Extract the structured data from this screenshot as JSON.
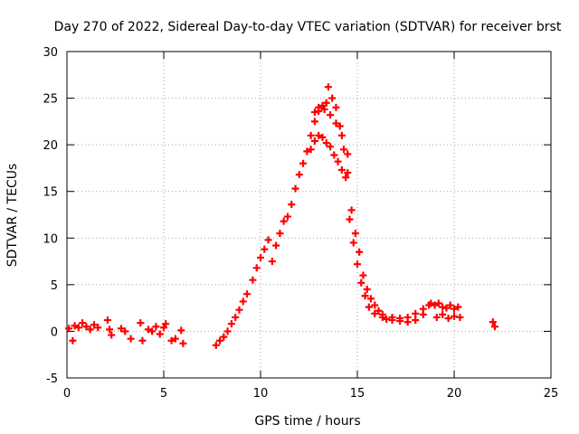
{
  "chart_data": {
    "type": "scatter",
    "title": "Day 270 of 2022, Sidereal Day-to-day VTEC variation (SDTVAR) for receiver brst",
    "xlabel": "GPS time / hours",
    "ylabel": "SDTVAR / TECUs",
    "xlim": [
      0,
      25
    ],
    "ylim": [
      -5,
      30
    ],
    "xticks": [
      0,
      5,
      10,
      15,
      20,
      25
    ],
    "yticks": [
      -5,
      0,
      5,
      10,
      15,
      20,
      25,
      30
    ],
    "grid": true,
    "marker": "plus",
    "series": [
      {
        "name": "SDTVAR",
        "color": "#ff0000",
        "points": [
          [
            0.1,
            0.3
          ],
          [
            0.3,
            -1.0
          ],
          [
            0.4,
            0.6
          ],
          [
            0.6,
            0.4
          ],
          [
            0.8,
            0.9
          ],
          [
            1.0,
            0.5
          ],
          [
            1.2,
            0.2
          ],
          [
            1.4,
            0.7
          ],
          [
            1.6,
            0.4
          ],
          [
            2.1,
            1.2
          ],
          [
            2.2,
            0.2
          ],
          [
            2.3,
            -0.4
          ],
          [
            2.8,
            0.3
          ],
          [
            3.0,
            0.0
          ],
          [
            3.3,
            -0.8
          ],
          [
            3.8,
            0.9
          ],
          [
            3.9,
            -1.0
          ],
          [
            4.2,
            0.2
          ],
          [
            4.4,
            0.0
          ],
          [
            4.6,
            0.5
          ],
          [
            4.8,
            -0.3
          ],
          [
            5.0,
            0.4
          ],
          [
            5.1,
            0.8
          ],
          [
            5.4,
            -1.0
          ],
          [
            5.6,
            -0.8
          ],
          [
            5.9,
            0.1
          ],
          [
            6.0,
            -1.3
          ],
          [
            7.7,
            -1.5
          ],
          [
            7.9,
            -1.0
          ],
          [
            8.1,
            -0.6
          ],
          [
            8.3,
            0.0
          ],
          [
            8.5,
            0.8
          ],
          [
            8.7,
            1.5
          ],
          [
            8.9,
            2.3
          ],
          [
            9.1,
            3.2
          ],
          [
            9.3,
            4.0
          ],
          [
            9.6,
            5.5
          ],
          [
            9.8,
            6.8
          ],
          [
            10.0,
            7.9
          ],
          [
            10.2,
            8.8
          ],
          [
            10.4,
            9.8
          ],
          [
            10.6,
            7.5
          ],
          [
            10.8,
            9.2
          ],
          [
            11.0,
            10.5
          ],
          [
            11.2,
            11.8
          ],
          [
            11.4,
            12.3
          ],
          [
            11.6,
            13.6
          ],
          [
            11.8,
            15.3
          ],
          [
            12.0,
            16.8
          ],
          [
            12.2,
            18.0
          ],
          [
            12.4,
            19.3
          ],
          [
            12.6,
            21.0
          ],
          [
            12.8,
            22.5
          ],
          [
            13.0,
            23.6
          ],
          [
            13.2,
            24.2
          ],
          [
            13.4,
            24.5
          ],
          [
            13.5,
            26.2
          ],
          [
            13.7,
            25.0
          ],
          [
            13.9,
            24.0
          ],
          [
            14.1,
            22.0
          ],
          [
            14.3,
            19.5
          ],
          [
            14.5,
            17.0
          ],
          [
            14.7,
            13.0
          ],
          [
            14.9,
            10.5
          ],
          [
            15.1,
            8.5
          ],
          [
            15.3,
            6.0
          ],
          [
            15.5,
            4.5
          ],
          [
            15.7,
            3.5
          ],
          [
            15.9,
            2.8
          ],
          [
            16.1,
            2.2
          ],
          [
            16.3,
            1.8
          ],
          [
            16.5,
            1.3
          ],
          [
            16.8,
            1.2
          ],
          [
            17.2,
            1.1
          ],
          [
            17.6,
            1.0
          ],
          [
            18.0,
            1.2
          ],
          [
            18.4,
            1.8
          ],
          [
            18.8,
            3.0
          ],
          [
            12.6,
            19.5
          ],
          [
            12.8,
            20.4
          ],
          [
            13.0,
            21.0
          ],
          [
            13.2,
            20.8
          ],
          [
            13.4,
            20.2
          ],
          [
            13.6,
            19.8
          ],
          [
            13.8,
            18.9
          ],
          [
            14.0,
            18.2
          ],
          [
            14.2,
            17.3
          ],
          [
            14.4,
            16.5
          ],
          [
            14.6,
            12.0
          ],
          [
            14.8,
            9.5
          ],
          [
            15.0,
            7.2
          ],
          [
            15.2,
            5.2
          ],
          [
            15.4,
            3.8
          ],
          [
            15.6,
            2.6
          ],
          [
            15.9,
            1.9
          ],
          [
            16.3,
            1.5
          ],
          [
            16.8,
            1.5
          ],
          [
            17.2,
            1.4
          ],
          [
            17.6,
            1.5
          ],
          [
            18.0,
            1.9
          ],
          [
            18.4,
            2.4
          ],
          [
            18.7,
            2.8
          ],
          [
            12.8,
            23.5
          ],
          [
            13.0,
            24.0
          ],
          [
            13.3,
            23.8
          ],
          [
            13.6,
            23.2
          ],
          [
            13.9,
            22.3
          ],
          [
            14.2,
            21.0
          ],
          [
            14.5,
            19.0
          ],
          [
            19.0,
            2.8
          ],
          [
            19.2,
            3.0
          ],
          [
            19.4,
            2.6
          ],
          [
            19.6,
            2.5
          ],
          [
            19.8,
            2.8
          ],
          [
            20.0,
            2.4
          ],
          [
            20.2,
            2.6
          ],
          [
            19.1,
            1.5
          ],
          [
            19.4,
            1.8
          ],
          [
            19.7,
            1.4
          ],
          [
            20.0,
            1.6
          ],
          [
            20.3,
            1.5
          ],
          [
            22.0,
            1.0
          ],
          [
            22.1,
            0.5
          ]
        ]
      }
    ]
  }
}
